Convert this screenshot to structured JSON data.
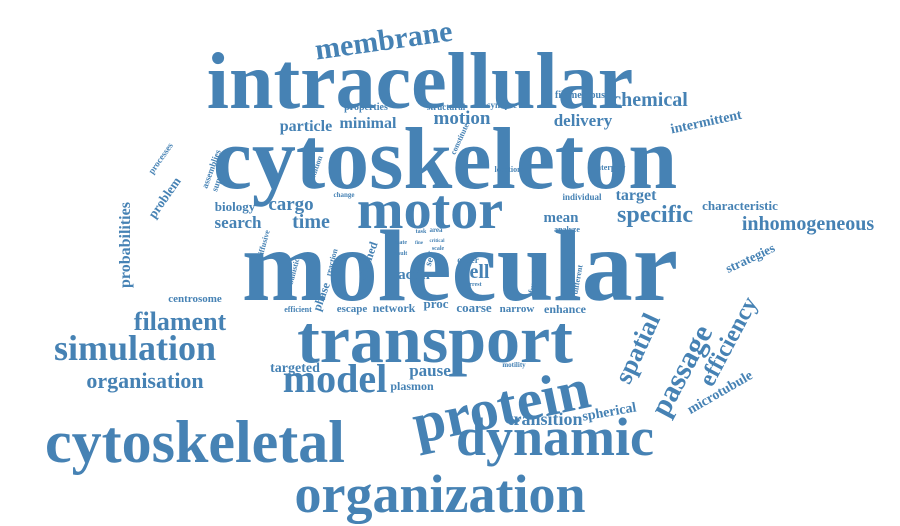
{
  "cloud": {
    "color": "#4682b4",
    "words": [
      {
        "text": "molecular",
        "size": 2.2
      },
      {
        "text": "cytoskeleton",
        "size": 2.0
      },
      {
        "text": "intracellular",
        "size": 1.8
      },
      {
        "text": "transport",
        "size": 1.6
      },
      {
        "text": "motor",
        "size": 1.25
      },
      {
        "text": "cytoskeletal",
        "size": 1.35
      },
      {
        "text": "dynamic",
        "size": 1.2
      },
      {
        "text": "organization",
        "size": 1.2
      },
      {
        "text": "protein",
        "size": 1.15
      },
      {
        "text": "model",
        "size": 0.9
      },
      {
        "text": "simulation",
        "size": 0.8
      },
      {
        "text": "passage",
        "size": 0.7
      },
      {
        "text": "membrane",
        "size": 0.65
      },
      {
        "text": "spatial",
        "size": 0.6
      },
      {
        "text": "efficiency",
        "size": 0.55
      },
      {
        "text": "filament",
        "size": 0.55
      },
      {
        "text": "organisation",
        "size": 0.5
      },
      {
        "text": "specific",
        "size": 0.55
      },
      {
        "text": "inhomogeneous",
        "size": 0.45
      },
      {
        "text": "chemical",
        "size": 0.45
      },
      {
        "text": "cell",
        "size": 0.45
      },
      {
        "text": "motion",
        "size": 0.4
      },
      {
        "text": "cargo",
        "size": 0.45
      },
      {
        "text": "time",
        "size": 0.45
      },
      {
        "text": "search",
        "size": 0.4
      },
      {
        "text": "transition",
        "size": 0.38
      },
      {
        "text": "delivery",
        "size": 0.35
      },
      {
        "text": "probabilities",
        "size": 0.33
      },
      {
        "text": "particle",
        "size": 0.33
      },
      {
        "text": "minimal",
        "size": 0.33
      },
      {
        "text": "pause",
        "size": 0.35
      },
      {
        "text": "target",
        "size": 0.33
      },
      {
        "text": "mean",
        "size": 0.3
      },
      {
        "text": "intermittent",
        "size": 0.28
      },
      {
        "text": "microtubule",
        "size": 0.28
      },
      {
        "text": "characteristic",
        "size": 0.26
      },
      {
        "text": "strategies",
        "size": 0.27
      },
      {
        "text": "spherical",
        "size": 0.3
      },
      {
        "text": "targeted",
        "size": 0.3
      },
      {
        "text": "biology",
        "size": 0.26
      },
      {
        "text": "problem",
        "size": 0.26
      },
      {
        "text": "actin",
        "size": 0.3
      },
      {
        "text": "proc",
        "size": 0.25
      },
      {
        "text": "coarse",
        "size": 0.25
      },
      {
        "text": "enhance",
        "size": 0.22
      },
      {
        "text": "network",
        "size": 0.22
      },
      {
        "text": "escape",
        "size": 0.2
      },
      {
        "text": "narrow",
        "size": 0.2
      },
      {
        "text": "phase",
        "size": 0.22
      },
      {
        "text": "plasmon",
        "size": 0.22
      },
      {
        "text": "centrosome",
        "size": 0.2
      },
      {
        "text": "grained",
        "size": 0.22
      },
      {
        "text": "filamentous",
        "size": 0.2
      },
      {
        "text": "properties",
        "size": 0.2
      },
      {
        "text": "structural",
        "size": 0.18
      },
      {
        "text": "synapse",
        "size": 0.18
      },
      {
        "text": "processes",
        "size": 0.18
      },
      {
        "text": "assemblies",
        "size": 0.18
      },
      {
        "text": "support",
        "size": 0.18
      },
      {
        "text": "individual",
        "size": 0.17
      },
      {
        "text": "interplay",
        "size": 0.16
      },
      {
        "text": "location",
        "size": 0.15
      },
      {
        "text": "function",
        "size": 0.17
      },
      {
        "text": "different",
        "size": 0.15
      },
      {
        "text": "analyze",
        "size": 0.15
      },
      {
        "text": "order",
        "size": 0.17
      },
      {
        "text": "self",
        "size": 0.18
      },
      {
        "text": "constitute",
        "size": 0.15
      },
      {
        "text": "condition",
        "size": 0.15
      },
      {
        "text": "diffusive",
        "size": 0.15
      },
      {
        "text": "ballistic",
        "size": 0.14
      },
      {
        "text": "reaction",
        "size": 0.14
      },
      {
        "text": "efficient",
        "size": 0.14
      },
      {
        "text": "velocity",
        "size": 0.13
      },
      {
        "text": "strategy",
        "size": 0.13
      },
      {
        "text": "motility",
        "size": 0.13
      },
      {
        "text": "change",
        "size": 0.13
      },
      {
        "text": "area",
        "size": 0.14
      },
      {
        "text": "task",
        "size": 0.12
      },
      {
        "text": "state",
        "size": 0.12
      },
      {
        "text": "result",
        "size": 0.12
      },
      {
        "text": "scale",
        "size": 0.12
      },
      {
        "text": "arrest",
        "size": 0.12
      },
      {
        "text": "critical",
        "size": 0.11
      },
      {
        "text": "fine",
        "size": 0.11
      }
    ]
  }
}
